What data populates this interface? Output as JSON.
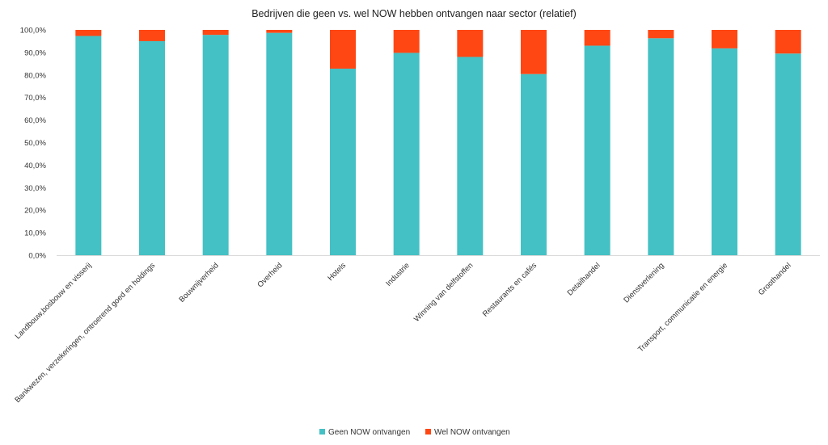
{
  "chart_data": {
    "type": "bar",
    "stacked": true,
    "title": "Bedrijven die geen vs. wel NOW hebben ontvangen naar sector (relatief)",
    "xlabel": "",
    "ylabel": "",
    "ylim": [
      0,
      100
    ],
    "yticks": [
      "0,0%",
      "10,0%",
      "20,0%",
      "30,0%",
      "40,0%",
      "50,0%",
      "60,0%",
      "70,0%",
      "80,0%",
      "90,0%",
      "100,0%"
    ],
    "grid": false,
    "legend_position": "bottom-center",
    "categories": [
      "Landbouw,bosbouw en visserij",
      "Bankwezen, verzekeringen, ontroerend goed en holdings",
      "Bouwnijverheid",
      "Overheid",
      "Hotels",
      "Industrie",
      "Winning van delfstoffen",
      "Restaurants en cafés",
      "Detailhandel",
      "Dienstverlening",
      "Transport, communicatie en energie",
      "Groothandel"
    ],
    "series": [
      {
        "name": "Geen NOW ontvangen",
        "color": "#44c1c4",
        "values": [
          97.3,
          95.0,
          97.8,
          98.7,
          82.8,
          89.8,
          88.0,
          80.4,
          93.0,
          96.3,
          91.8,
          89.5
        ]
      },
      {
        "name": "Wel NOW ontvangen",
        "color": "#ff4714",
        "values": [
          2.7,
          5.0,
          2.2,
          1.3,
          17.2,
          10.2,
          12.0,
          19.6,
          7.0,
          3.7,
          8.2,
          10.5
        ]
      }
    ]
  }
}
